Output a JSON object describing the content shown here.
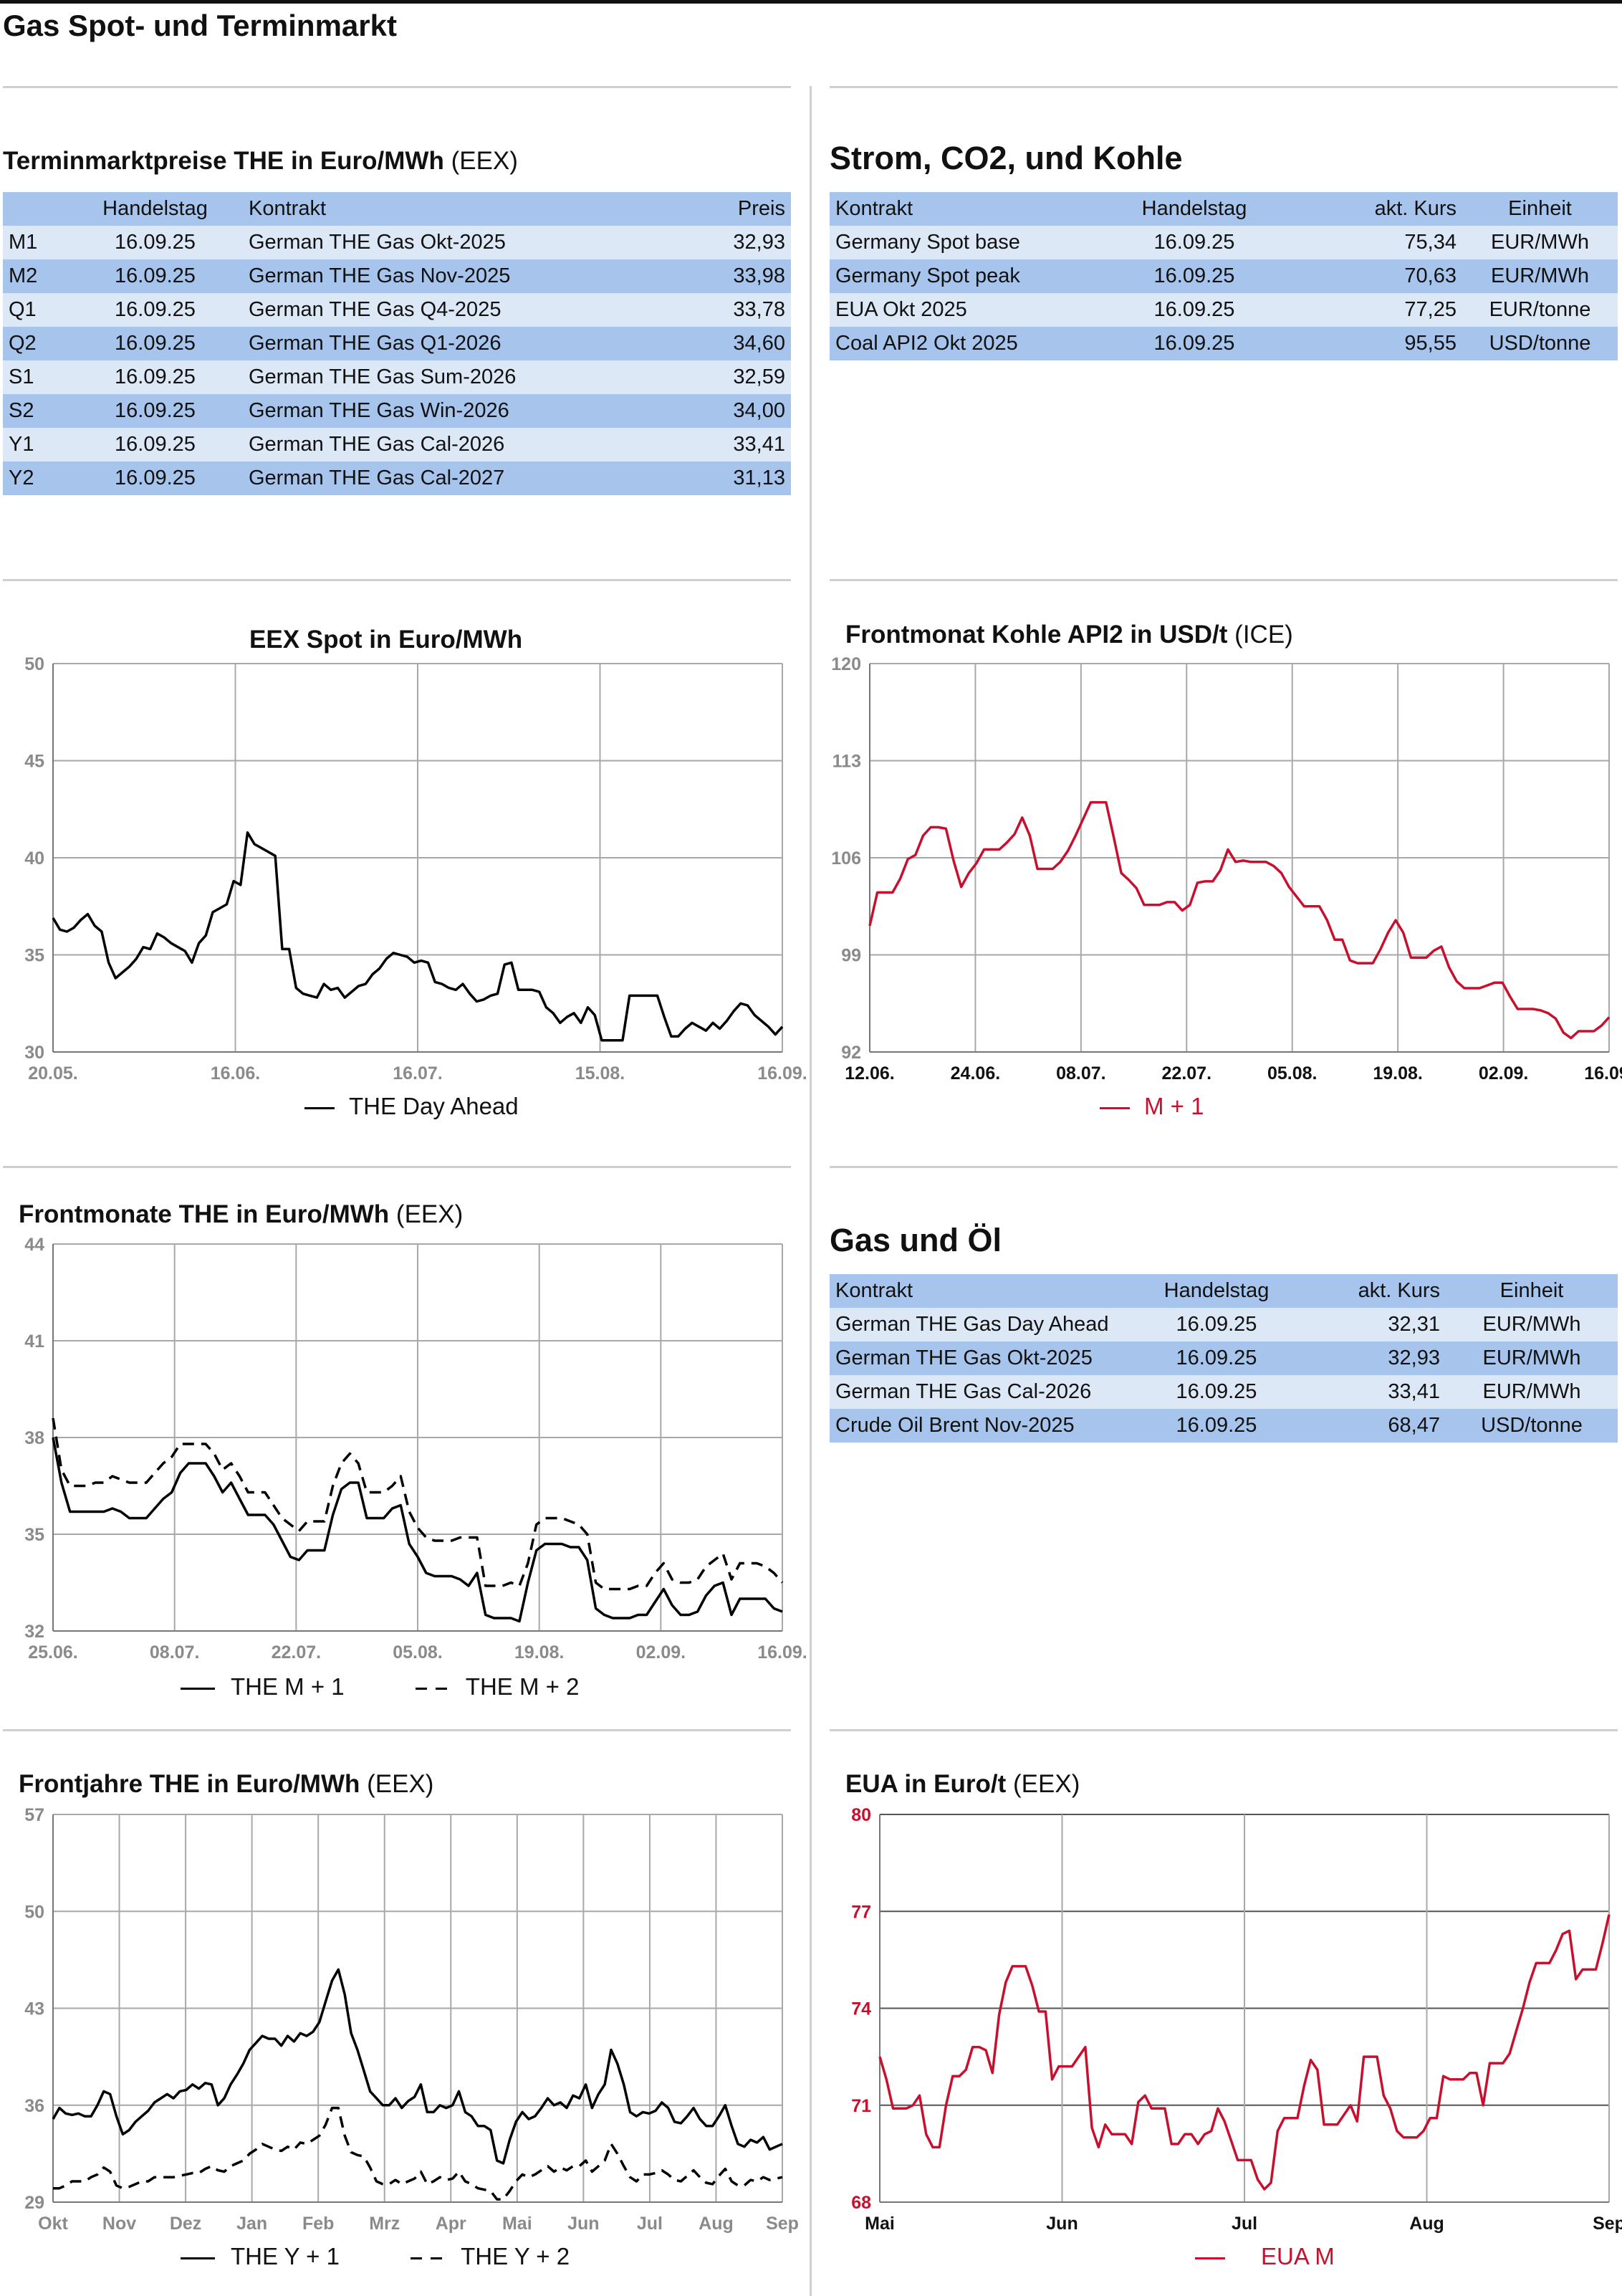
{
  "page_title": "Gas Spot- und Terminmarkt",
  "the_table": {
    "title_bold": "Terminmarktpreise THE in Euro/MWh",
    "title_src": "(EEX)",
    "headers": [
      "",
      "Handelstag",
      "Kontrakt",
      "Preis"
    ],
    "rows": [
      [
        "M1",
        "16.09.25",
        "German THE Gas Okt-2025",
        "32,93"
      ],
      [
        "M2",
        "16.09.25",
        "German THE Gas Nov-2025",
        "33,98"
      ],
      [
        "Q1",
        "16.09.25",
        "German THE Gas Q4-2025",
        "33,78"
      ],
      [
        "Q2",
        "16.09.25",
        "German THE Gas Q1-2026",
        "34,60"
      ],
      [
        "S1",
        "16.09.25",
        "German THE Gas Sum-2026",
        "32,59"
      ],
      [
        "S2",
        "16.09.25",
        "German THE Gas Win-2026",
        "34,00"
      ],
      [
        "Y1",
        "16.09.25",
        "German THE Gas Cal-2026",
        "33,41"
      ],
      [
        "Y2",
        "16.09.25",
        "German THE Gas Cal-2027",
        "31,13"
      ]
    ]
  },
  "strom_table": {
    "title": "Strom, CO2, und Kohle",
    "headers": [
      "Kontrakt",
      "Handelstag",
      "akt. Kurs",
      "Einheit"
    ],
    "rows": [
      [
        "Germany Spot base",
        "16.09.25",
        "75,34",
        "EUR/MWh"
      ],
      [
        "Germany Spot peak",
        "16.09.25",
        "70,63",
        "EUR/MWh"
      ],
      [
        "EUA Okt 2025",
        "16.09.25",
        "77,25",
        "EUR/tonne"
      ],
      [
        "Coal API2 Okt 2025",
        "16.09.25",
        "95,55",
        "USD/tonne"
      ]
    ]
  },
  "gas_oel_table": {
    "title": "Gas und Öl",
    "headers": [
      "Kontrakt",
      "Handelstag",
      "akt. Kurs",
      "Einheit"
    ],
    "rows": [
      [
        "German THE Gas Day Ahead",
        "16.09.25",
        "32,31",
        "EUR/MWh"
      ],
      [
        "German THE Gas Okt-2025",
        "16.09.25",
        "32,93",
        "EUR/MWh"
      ],
      [
        "German THE Gas Cal-2026",
        "16.09.25",
        "33,41",
        "EUR/MWh"
      ],
      [
        "Crude Oil Brent Nov-2025",
        "16.09.25",
        "68,47",
        "USD/tonne"
      ]
    ]
  },
  "chart_data": [
    {
      "id": "spot",
      "type": "line",
      "title": "EEX Spot in Euro/MWh",
      "title_src": "",
      "ylim": [
        30,
        50
      ],
      "yticks": [
        "30",
        "35",
        "40",
        "45",
        "50"
      ],
      "xticks": [
        "20.05.",
        "16.06.",
        "16.07.",
        "15.08.",
        "16.09."
      ],
      "grid": true,
      "legend_position": "bottom",
      "colors": {
        "line": "#000000"
      },
      "series": [
        {
          "name": "THE Day Ahead",
          "style": "solid",
          "values": [
            36.9,
            36.3,
            36.2,
            36.4,
            36.8,
            37.1,
            36.5,
            36.2,
            34.6,
            33.8,
            34.1,
            34.4,
            34.8,
            35.4,
            35.3,
            36.1,
            35.9,
            35.6,
            35.4,
            35.2,
            34.6,
            35.6,
            36.0,
            37.2,
            37.4,
            37.6,
            38.8,
            38.6,
            41.3,
            40.7,
            40.5,
            40.3,
            40.1,
            35.3,
            35.3,
            33.3,
            33.0,
            32.9,
            32.8,
            33.5,
            33.2,
            33.3,
            32.8,
            33.1,
            33.4,
            33.5,
            34.0,
            34.3,
            34.8,
            35.1,
            35.0,
            34.9,
            34.6,
            34.7,
            34.6,
            33.6,
            33.5,
            33.3,
            33.2,
            33.5,
            33.0,
            32.6,
            32.7,
            32.9,
            33.0,
            34.5,
            34.6,
            33.2,
            33.2,
            33.2,
            33.1,
            32.3,
            32.0,
            31.5,
            31.8,
            32.0,
            31.5,
            32.3,
            31.9,
            30.6,
            30.6,
            30.6,
            30.6,
            32.9,
            32.9,
            32.9,
            32.9,
            32.9,
            31.8,
            30.8,
            30.8,
            31.2,
            31.5,
            31.3,
            31.1,
            31.5,
            31.2,
            31.6,
            32.1,
            32.5,
            32.4,
            31.9,
            31.6,
            31.3,
            30.9,
            31.3
          ]
        }
      ]
    },
    {
      "id": "kohle",
      "type": "line",
      "title": "Frontmonat Kohle API2 in USD/t",
      "title_src": "(ICE)",
      "ylim": [
        92,
        120
      ],
      "yticks": [
        "92",
        "99",
        "106",
        "113",
        "120"
      ],
      "xticks": [
        "12.06.",
        "24.06.",
        "08.07.",
        "22.07.",
        "05.08.",
        "19.08.",
        "02.09.",
        "16.09."
      ],
      "grid": true,
      "legend_position": "bottom",
      "colors": {
        "line": "#c8102e"
      },
      "series": [
        {
          "name": "M + 1",
          "style": "solid",
          "values": [
            101.1,
            103.5,
            103.5,
            103.5,
            104.5,
            105.9,
            106.2,
            107.6,
            108.2,
            108.2,
            108.1,
            105.8,
            103.9,
            104.9,
            105.6,
            106.6,
            106.6,
            106.6,
            107.1,
            107.7,
            108.9,
            107.6,
            105.2,
            105.2,
            105.2,
            105.7,
            106.5,
            107.6,
            108.8,
            110.0,
            110.0,
            110.0,
            107.5,
            104.9,
            104.4,
            103.8,
            102.6,
            102.6,
            102.6,
            102.8,
            102.8,
            102.2,
            102.6,
            104.2,
            104.3,
            104.3,
            105.1,
            106.6,
            105.7,
            105.8,
            105.7,
            105.7,
            105.7,
            105.4,
            104.9,
            103.9,
            103.2,
            102.5,
            102.5,
            102.5,
            101.5,
            100.1,
            100.1,
            98.6,
            98.4,
            98.4,
            98.4,
            99.4,
            100.6,
            101.5,
            100.6,
            98.8,
            98.8,
            98.8,
            99.3,
            99.6,
            98.1,
            97.1,
            96.6,
            96.6,
            96.6,
            96.8,
            97.0,
            97.0,
            96.0,
            95.1,
            95.1,
            95.1,
            95.0,
            94.8,
            94.4,
            93.4,
            93.0,
            93.5,
            93.5,
            93.5,
            93.9,
            94.5
          ]
        }
      ]
    },
    {
      "id": "frontmonate",
      "type": "line",
      "title": "Frontmonate THE in Euro/MWh",
      "title_src": "(EEX)",
      "ylim": [
        32,
        44
      ],
      "yticks": [
        "32",
        "35",
        "38",
        "41",
        "44"
      ],
      "xticks": [
        "25.06.",
        "08.07.",
        "22.07.",
        "05.08.",
        "19.08.",
        "02.09.",
        "16.09."
      ],
      "grid": true,
      "legend_position": "bottom",
      "colors": {
        "line": "#000000"
      },
      "series": [
        {
          "name": "THE M + 1",
          "style": "solid",
          "values": [
            38.0,
            36.6,
            35.7,
            35.7,
            35.7,
            35.7,
            35.7,
            35.8,
            35.7,
            35.5,
            35.5,
            35.5,
            35.8,
            36.1,
            36.3,
            36.9,
            37.2,
            37.2,
            37.2,
            36.8,
            36.3,
            36.6,
            36.1,
            35.6,
            35.6,
            35.6,
            35.3,
            34.8,
            34.3,
            34.2,
            34.5,
            34.5,
            34.5,
            35.6,
            36.4,
            36.6,
            36.6,
            35.5,
            35.5,
            35.5,
            35.8,
            35.9,
            34.7,
            34.3,
            33.8,
            33.7,
            33.7,
            33.7,
            33.6,
            33.4,
            33.8,
            32.5,
            32.4,
            32.4,
            32.4,
            32.3,
            33.5,
            34.5,
            34.7,
            34.7,
            34.7,
            34.6,
            34.6,
            34.2,
            32.7,
            32.5,
            32.4,
            32.4,
            32.4,
            32.5,
            32.5,
            32.9,
            33.3,
            32.8,
            32.5,
            32.5,
            32.6,
            33.1,
            33.4,
            33.5,
            32.5,
            33.0,
            33.0,
            33.0,
            33.0,
            32.7,
            32.6
          ]
        },
        {
          "name": "THE M + 2",
          "style": "dashed",
          "values": [
            38.6,
            37.0,
            36.5,
            36.5,
            36.5,
            36.6,
            36.6,
            36.8,
            36.7,
            36.6,
            36.6,
            36.6,
            36.9,
            37.2,
            37.4,
            37.8,
            37.8,
            37.8,
            37.8,
            37.5,
            37.0,
            37.2,
            36.8,
            36.3,
            36.3,
            36.3,
            35.9,
            35.5,
            35.3,
            35.1,
            35.4,
            35.4,
            35.4,
            36.5,
            37.2,
            37.5,
            37.2,
            36.3,
            36.3,
            36.3,
            36.5,
            36.8,
            35.7,
            35.2,
            34.9,
            34.8,
            34.8,
            34.8,
            34.9,
            34.9,
            34.9,
            33.4,
            33.4,
            33.4,
            33.5,
            33.4,
            34.1,
            35.3,
            35.5,
            35.5,
            35.5,
            35.4,
            35.3,
            35.0,
            33.5,
            33.3,
            33.3,
            33.3,
            33.3,
            33.4,
            33.4,
            33.8,
            34.1,
            33.6,
            33.5,
            33.5,
            33.6,
            34.0,
            34.2,
            34.4,
            33.6,
            34.1,
            34.1,
            34.1,
            34.0,
            33.8,
            33.5
          ]
        }
      ]
    },
    {
      "id": "frontjahre",
      "type": "line",
      "title": "Frontjahre THE in Euro/MWh",
      "title_src": "(EEX)",
      "ylim": [
        29,
        57
      ],
      "yticks": [
        "29",
        "36",
        "43",
        "50",
        "57"
      ],
      "xticks": [
        "Okt",
        "Nov",
        "Dez",
        "Jan",
        "Feb",
        "Mrz",
        "Apr",
        "Mai",
        "Jun",
        "Jul",
        "Aug",
        "Sep"
      ],
      "grid": true,
      "legend_position": "bottom",
      "colors": {
        "line": "#000000"
      },
      "series": [
        {
          "name": "THE Y + 1",
          "style": "solid",
          "values": [
            35.0,
            35.8,
            35.4,
            35.3,
            35.4,
            35.2,
            35.2,
            36.0,
            37.0,
            36.8,
            35.2,
            33.9,
            34.2,
            34.8,
            35.2,
            35.6,
            36.2,
            36.5,
            36.8,
            36.5,
            37.0,
            37.1,
            37.5,
            37.2,
            37.6,
            37.5,
            36.0,
            36.5,
            37.5,
            38.2,
            39.0,
            40.0,
            40.5,
            41.0,
            40.8,
            40.8,
            40.3,
            41.0,
            40.6,
            41.2,
            41.0,
            41.3,
            42.0,
            43.5,
            45.0,
            45.8,
            44.0,
            41.2,
            40.0,
            38.5,
            37.0,
            36.5,
            36.0,
            36.0,
            36.5,
            35.8,
            36.3,
            36.6,
            37.5,
            35.5,
            35.5,
            36.0,
            35.8,
            36.0,
            37.0,
            35.5,
            35.2,
            34.5,
            34.5,
            34.2,
            32.0,
            31.8,
            33.5,
            34.8,
            35.5,
            35.0,
            35.2,
            35.8,
            36.5,
            36.0,
            36.2,
            35.8,
            36.7,
            36.5,
            37.5,
            35.8,
            36.8,
            37.5,
            40.0,
            39.0,
            37.5,
            35.5,
            35.2,
            35.5,
            35.4,
            35.6,
            36.2,
            35.8,
            34.8,
            34.7,
            35.2,
            35.8,
            35.0,
            34.5,
            34.5,
            35.2,
            36.0,
            34.5,
            33.2,
            33.0,
            33.5,
            33.3,
            33.7,
            32.8,
            33.0,
            33.2
          ]
        },
        {
          "name": "THE Y + 2",
          "style": "dashed",
          "values": [
            30.0,
            30.0,
            30.2,
            30.5,
            30.5,
            30.5,
            30.8,
            31.0,
            31.5,
            31.2,
            30.2,
            30.0,
            30.1,
            30.3,
            30.5,
            30.5,
            30.8,
            30.8,
            30.8,
            30.8,
            30.9,
            31.0,
            31.1,
            31.1,
            31.4,
            31.6,
            31.3,
            31.2,
            31.6,
            31.8,
            32.0,
            32.5,
            32.8,
            33.2,
            33.0,
            32.8,
            32.7,
            33.0,
            32.8,
            33.3,
            33.2,
            33.5,
            33.8,
            34.6,
            35.8,
            35.8,
            33.8,
            32.6,
            32.4,
            32.3,
            31.5,
            30.5,
            30.3,
            30.3,
            30.6,
            30.3,
            30.5,
            30.7,
            31.2,
            30.3,
            30.5,
            30.8,
            30.6,
            30.7,
            31.2,
            30.5,
            30.3,
            30.0,
            29.9,
            29.8,
            29.2,
            29.2,
            29.8,
            30.5,
            31.0,
            30.8,
            31.0,
            31.3,
            31.6,
            31.2,
            31.5,
            31.3,
            31.6,
            31.6,
            32.0,
            31.2,
            31.6,
            32.0,
            33.2,
            32.5,
            31.6,
            30.8,
            30.5,
            31.0,
            31.0,
            31.1,
            31.3,
            31.0,
            30.6,
            30.5,
            30.9,
            31.3,
            30.8,
            30.4,
            30.3,
            30.9,
            31.4,
            30.5,
            30.2,
            30.2,
            30.6,
            30.5,
            30.8,
            30.6,
            30.7,
            30.8
          ]
        }
      ]
    },
    {
      "id": "eua",
      "type": "line",
      "title": "EUA in Euro/t",
      "title_src": "(EEX)",
      "ylim": [
        68,
        80
      ],
      "yticks": [
        "68",
        "71",
        "74",
        "77",
        "80"
      ],
      "xticks": [
        "Mai",
        "Jun",
        "Jul",
        "Aug",
        "Sep"
      ],
      "grid": true,
      "legend_position": "bottom",
      "colors": {
        "line": "#c8102e"
      },
      "series": [
        {
          "name": "EUA M",
          "style": "solid",
          "values": [
            72.5,
            71.8,
            70.9,
            70.9,
            70.9,
            71.0,
            71.3,
            70.1,
            69.7,
            69.7,
            71.0,
            71.9,
            71.9,
            72.1,
            72.8,
            72.8,
            72.7,
            72.0,
            73.8,
            74.8,
            75.3,
            75.3,
            75.3,
            74.7,
            73.9,
            73.9,
            71.8,
            72.2,
            72.2,
            72.2,
            72.5,
            72.8,
            70.3,
            69.7,
            70.4,
            70.1,
            70.1,
            70.1,
            69.8,
            71.1,
            71.3,
            70.9,
            70.9,
            70.9,
            69.8,
            69.8,
            70.1,
            70.1,
            69.8,
            70.1,
            70.2,
            70.9,
            70.5,
            69.9,
            69.3,
            69.3,
            69.3,
            68.7,
            68.4,
            68.6,
            70.2,
            70.6,
            70.6,
            70.6,
            71.6,
            72.4,
            72.1,
            70.4,
            70.4,
            70.4,
            70.7,
            71.0,
            70.5,
            72.5,
            72.5,
            72.5,
            71.3,
            70.9,
            70.2,
            70.0,
            70.0,
            70.0,
            70.2,
            70.6,
            70.6,
            71.9,
            71.8,
            71.8,
            71.8,
            72.0,
            72.0,
            71.0,
            72.3,
            72.3,
            72.3,
            72.6,
            73.3,
            74.0,
            74.8,
            75.4,
            75.4,
            75.4,
            75.8,
            76.3,
            76.4,
            74.9,
            75.2,
            75.2,
            75.2,
            76.0,
            76.9
          ]
        }
      ]
    }
  ]
}
